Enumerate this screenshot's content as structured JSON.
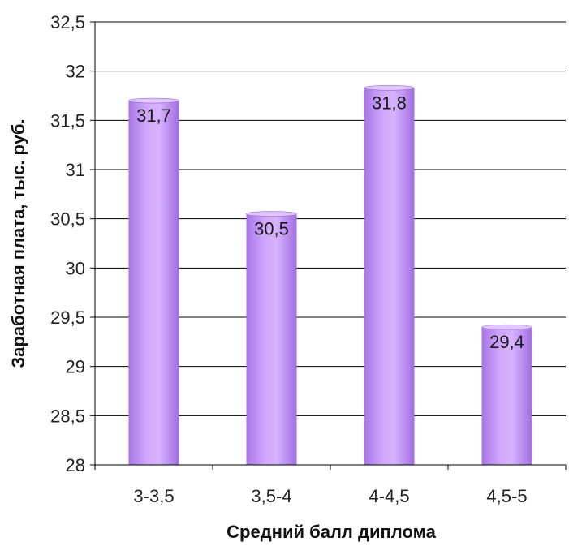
{
  "chart_data": {
    "type": "bar",
    "categories": [
      "3-3,5",
      "3,5-4",
      "4-4,5",
      "4,5-5"
    ],
    "values": [
      31.7,
      30.55,
      31.83,
      29.4
    ],
    "data_labels": [
      "31,7",
      "30,5",
      "31,8",
      "29,4"
    ],
    "ylim": [
      28,
      32.5
    ],
    "yticks": [
      {
        "value": 28,
        "label": "28"
      },
      {
        "value": 28.5,
        "label": "28,5"
      },
      {
        "value": 29,
        "label": "29"
      },
      {
        "value": 29.5,
        "label": "29,5"
      },
      {
        "value": 30,
        "label": "30"
      },
      {
        "value": 30.5,
        "label": "30,5"
      },
      {
        "value": 31,
        "label": "31"
      },
      {
        "value": 31.5,
        "label": "31,5"
      },
      {
        "value": 32,
        "label": "32"
      },
      {
        "value": 32.5,
        "label": "32,5"
      }
    ],
    "xlabel": "Средний балл диплома",
    "ylabel": "Заработная плата, тыс. руб.",
    "grid": true,
    "bar_color": "#c69cf7",
    "bar_edge_color": "#9a6ad6"
  }
}
